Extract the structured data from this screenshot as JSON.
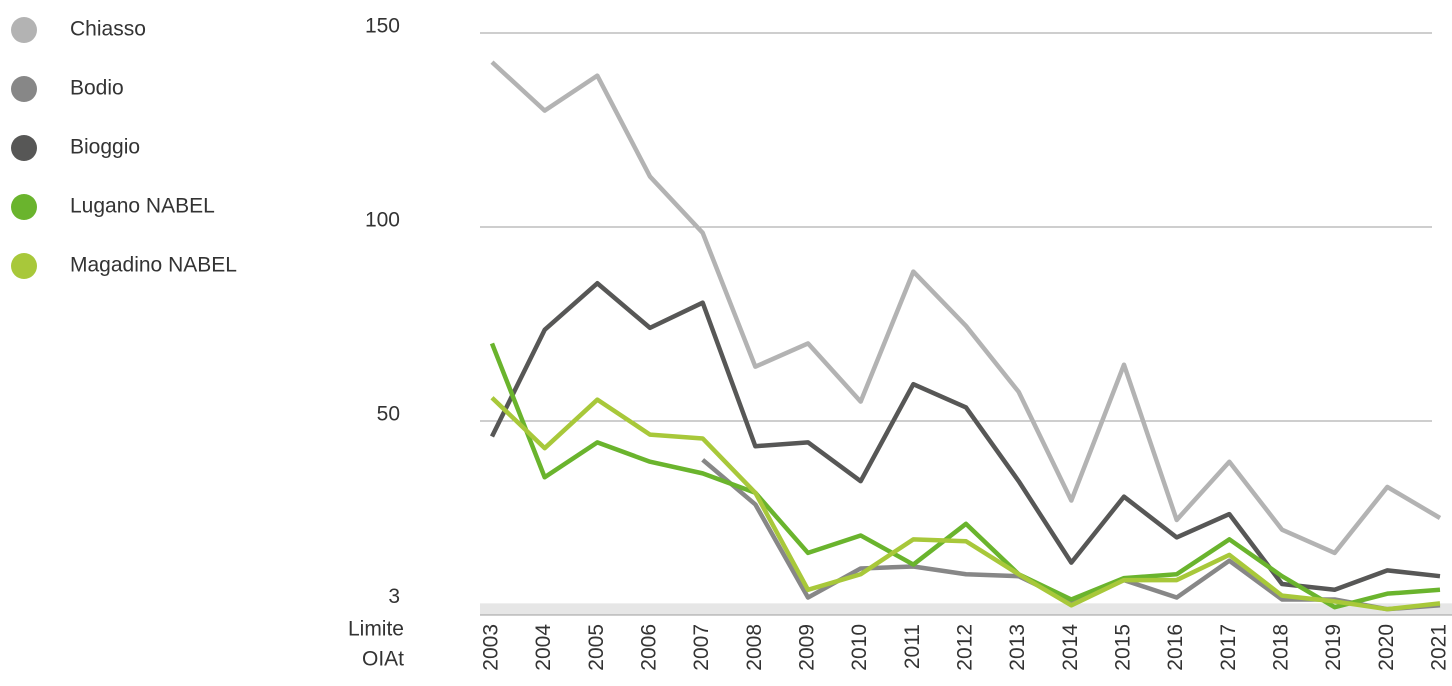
{
  "chart_data": {
    "type": "line",
    "categories": [
      "2003",
      "2004",
      "2005",
      "2006",
      "2007",
      "2008",
      "2009",
      "2010",
      "2011",
      "2012",
      "2013",
      "2014",
      "2015",
      "2016",
      "2017",
      "2018",
      "2019",
      "2020",
      "2021"
    ],
    "series": [
      {
        "name": "Chiasso",
        "color": "#b3b3b3",
        "values": [
          142.5,
          130,
          139,
          113,
          98.5,
          64,
          70,
          55,
          88.5,
          74.5,
          57.5,
          29.5,
          64.5,
          24.5,
          39.5,
          22,
          16,
          33,
          25
        ]
      },
      {
        "name": "Bodio",
        "color": "#878787",
        "values": [
          null,
          null,
          null,
          null,
          40,
          28.5,
          4.5,
          12,
          12.5,
          10.5,
          10,
          3.5,
          9,
          4.5,
          14,
          4,
          4,
          1.5,
          2.5
        ]
      },
      {
        "name": "Bioggio",
        "color": "#575756",
        "values": [
          46,
          73.5,
          85.5,
          74,
          80.5,
          43.5,
          44.5,
          34.5,
          59.5,
          53.5,
          34.5,
          13.5,
          30.5,
          20,
          26,
          8,
          6.5,
          11.5,
          10
        ]
      },
      {
        "name": "Lugano NABEL",
        "color": "#6ab42d",
        "values": [
          70,
          35.5,
          44.5,
          39.5,
          36.5,
          31.5,
          16,
          20.5,
          13,
          23.5,
          10.5,
          4,
          9.5,
          10.5,
          19.5,
          10,
          2,
          5.5,
          6.5
        ]
      },
      {
        "name": "Magadino NABEL",
        "color": "#a8c83a",
        "values": [
          56,
          43,
          55.5,
          46.5,
          45.5,
          31.5,
          6.5,
          10.5,
          19.5,
          19,
          10.5,
          2.5,
          9,
          9,
          15.5,
          5,
          3.5,
          1.5,
          3
        ]
      }
    ],
    "ylim": [
      0,
      150
    ],
    "yticks": [
      150,
      100,
      50,
      3
    ],
    "grid": true,
    "limit_label": [
      "Limite",
      "OIAt"
    ],
    "legend": "top-left"
  }
}
